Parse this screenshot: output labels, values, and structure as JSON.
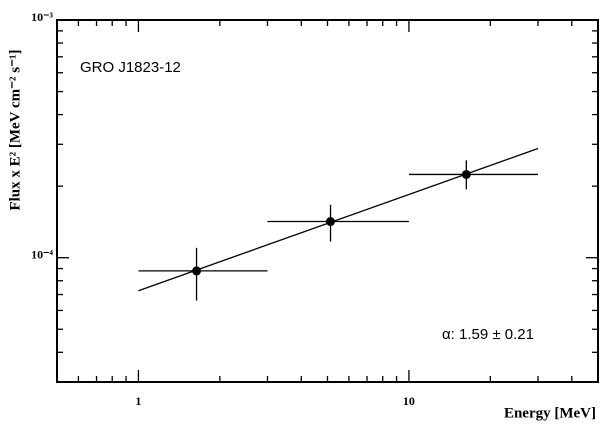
{
  "chart_data": {
    "type": "scatter",
    "annotations": [
      "GRO J1823-12",
      "α: 1.59 ± 0.21"
    ],
    "x_label": "Energy [MeV]",
    "y_label": "Flux x E² [MeV cm⁻² s⁻¹]",
    "log_x": true,
    "log_y": true,
    "xlim": [
      0.5,
      50
    ],
    "ylim": [
      3e-05,
      0.001
    ],
    "xticks": [
      1,
      10
    ],
    "xminorticks": [
      0.5,
      0.6,
      0.7,
      0.8,
      0.9,
      2,
      3,
      4,
      5,
      6,
      7,
      8,
      9,
      20,
      30,
      40,
      50
    ],
    "yticks": [
      {
        "value": 0.0001,
        "label": "10⁻⁴"
      },
      {
        "value": 0.001,
        "label": "10⁻³"
      }
    ],
    "yminorticks": [
      3e-05,
      4e-05,
      5e-05,
      6e-05,
      7e-05,
      8e-05,
      9e-05,
      0.0002,
      0.0003,
      0.0004,
      0.0005,
      0.0006,
      0.0007,
      0.0008,
      0.0009
    ],
    "color": "#000000",
    "series": [
      {
        "x": [
          1.64,
          5.13,
          16.3
        ],
        "values": [
          8.8e-05,
          0.000142,
          0.000224
        ],
        "x_lower": [
          1,
          3,
          10
        ],
        "x_upper": [
          3,
          10,
          30
        ],
        "y_lower": [
          6.6e-05,
          0.000117,
          0.000194
        ],
        "y_upper": [
          0.00011,
          0.000167,
          0.000257
        ]
      }
    ],
    "fit": {
      "x": [
        1,
        30
      ],
      "values": [
        7.26e-05,
        0.000288
      ]
    }
  }
}
